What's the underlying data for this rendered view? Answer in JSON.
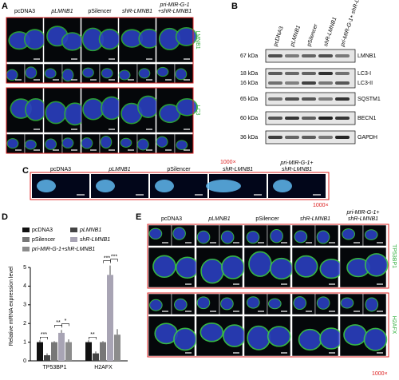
{
  "panels": {
    "A": {
      "label": "A",
      "columns": [
        "pcDNA3",
        "pLMNB1",
        "pSilencer",
        "shR-LMNB1",
        [
          "pri-MIR-G-1",
          "+shR-LMNB1"
        ]
      ],
      "rows": [
        "LMNB1",
        "LC3"
      ]
    },
    "B": {
      "label": "B",
      "columns": [
        "pcDNA3",
        "pLMNB1",
        "pSilencer",
        "shR-LMNB1",
        "pri-MIR-G-1+ shR-LMNB1"
      ],
      "markers": [
        "67 kDa",
        "18 kDa",
        "16 kDa",
        "65 kDa",
        "60 kDa",
        "36 kDa"
      ],
      "proteins": [
        "LMNB1",
        "LC3-I",
        "LC3-II",
        "SQSTM1",
        "BECN1",
        "GAPDH"
      ]
    },
    "C": {
      "label": "C",
      "columns": [
        "pcDNA3",
        "pLMNB1",
        "pSilencer",
        "shR-LMNB1",
        [
          "pri-MIR-G-1+",
          "shR-LMNB1"
        ]
      ],
      "magnification": [
        "1000×",
        "1000×"
      ]
    },
    "D": {
      "label": "D"
    },
    "E": {
      "label": "E",
      "columns": [
        "pcDNA3",
        "pLMNB1",
        "pSilencer",
        "shR-LMNB1",
        [
          "pri-MIR-G-1+",
          "shR-LMNB1"
        ]
      ],
      "rows": [
        "TP53BP1",
        "H2AFX"
      ],
      "magnification": "1000×"
    }
  },
  "chart_data": {
    "type": "bar",
    "y_label": "Relative mRNA expression level",
    "categories": [
      "TP53BP1",
      "H2AFX"
    ],
    "series": [
      {
        "name": "pcDNA3",
        "color": "#111111",
        "values": [
          1.0,
          1.0
        ],
        "errors": [
          0.1,
          0.1
        ]
      },
      {
        "name": "pLMNB1",
        "color": "#444444",
        "values": [
          0.3,
          0.4
        ],
        "errors": [
          0.1,
          0.1
        ]
      },
      {
        "name": "pSilencer",
        "color": "#777777",
        "values": [
          1.0,
          1.0
        ],
        "errors": [
          0.05,
          0.05
        ]
      },
      {
        "name": "shR-LMNB1",
        "color": "#a8a4b4",
        "values": [
          1.5,
          4.6
        ],
        "errors": [
          0.15,
          0.5
        ]
      },
      {
        "name": "pri-MIR-G-1+shR-LMNB1",
        "color": "#8c8c8c",
        "values": [
          1.0,
          1.4
        ],
        "errors": [
          0.15,
          0.3
        ]
      }
    ],
    "ylim": [
      0,
      5
    ],
    "yticks": [
      0,
      1,
      2,
      3,
      4,
      5
    ],
    "significance": [
      "***",
      "**",
      "*",
      "**",
      "***",
      "***"
    ]
  }
}
